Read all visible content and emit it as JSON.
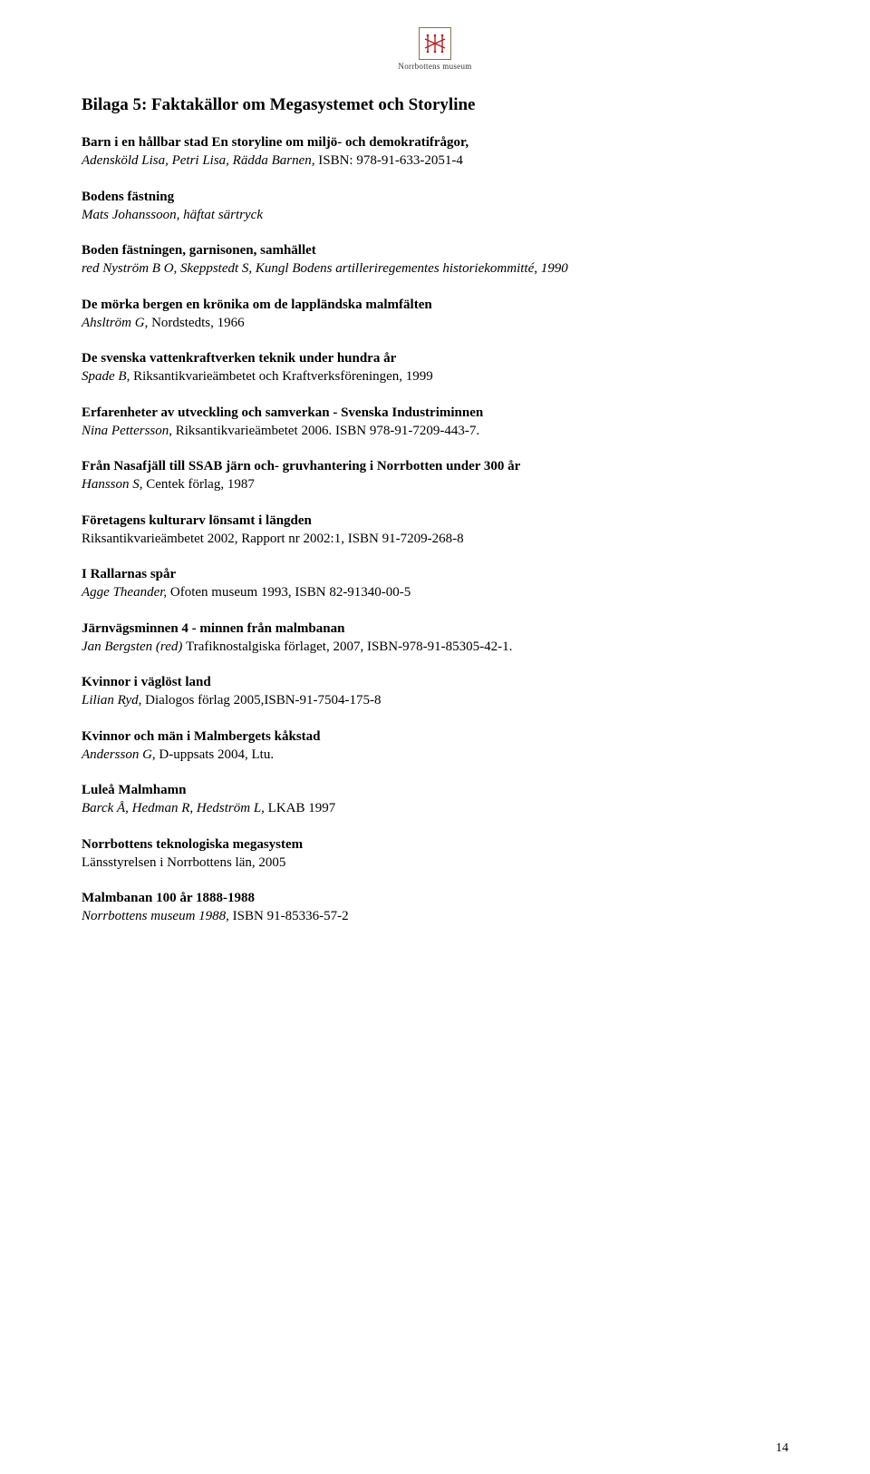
{
  "logo": {
    "name": "Norrbottens museum",
    "icon_color": "#b22222",
    "border_color": "#8b6f47"
  },
  "title": "Bilaga 5: Faktakällor om Megasystemet och Storyline",
  "entries": [
    {
      "bold": "Barn i en hållbar stad En storyline om miljö- och demokratifrågor,",
      "italic": "Adensköld Lisa, Petri Lisa, Rädda Barnen, ",
      "plain": "ISBN: 978-91-633-2051-4"
    },
    {
      "bold": "Bodens fästning",
      "italic": "Mats Johanssoon, häftat särtryck",
      "plain": ""
    },
    {
      "bold": "Boden fästningen, garnisonen, samhället",
      "italic": "red Nyström B O, Skeppstedt S, Kungl Bodens artilleriregementes historiekommitté, 1990",
      "plain": ""
    },
    {
      "bold": "De mörka bergen en krönika om de lappländska malmfälten",
      "italic": "Ahsltröm G",
      "plain": ", Nordstedts, 1966"
    },
    {
      "bold": "De svenska vattenkraftverken teknik under hundra år",
      "italic": "Spade B",
      "plain": ", Riksantikvarieämbetet och Kraftverksföreningen, 1999"
    },
    {
      "bold": "Erfarenheter av utveckling och samverkan - Svenska Industriminnen",
      "italic": "Nina Pettersson",
      "plain": ", Riksantikvarieämbetet 2006. ISBN 978-91-7209-443-7."
    },
    {
      "bold": "Från Nasafjäll till SSAB järn och- gruvhantering i Norrbotten under 300 år",
      "italic": "Hansson S",
      "plain": ", Centek förlag, 1987"
    },
    {
      "bold": "Företagens kulturarv lönsamt i längden",
      "italic": "",
      "plain": "Riksantikvarieämbetet 2002, Rapport nr 2002:1, ISBN 91-7209-268-8"
    },
    {
      "bold": "I Rallarnas spår",
      "italic": "Agge Theander, ",
      "plain": "Ofoten museum 1993, ISBN 82-91340-00-5"
    },
    {
      "bold": "Järnvägsminnen 4 - minnen från malmbanan",
      "italic": "Jan Bergsten (red) ",
      "plain": "Trafiknostalgiska förlaget, 2007, ISBN-978-91-85305-42-1."
    },
    {
      "bold": "Kvinnor i väglöst land",
      "italic": "Lilian Ryd",
      "plain": ", Dialogos förlag 2005,ISBN-91-7504-175-8"
    },
    {
      "bold": "Kvinnor och män i Malmbergets kåkstad",
      "italic": "Andersson G",
      "plain": ", D-uppsats 2004, Ltu."
    },
    {
      "bold": "Luleå Malmhamn",
      "italic": "Barck Å, Hedman R, Hedström L",
      "plain": ", LKAB 1997"
    },
    {
      "bold": "Norrbottens teknologiska megasystem",
      "italic": "",
      "plain": "Länsstyrelsen i Norrbottens län, 2005"
    },
    {
      "bold": "Malmbanan 100 år 1888-1988",
      "italic": "Norrbottens museum 1988",
      "plain": ", ISBN 91-85336-57-2"
    }
  ],
  "page_number": "14"
}
